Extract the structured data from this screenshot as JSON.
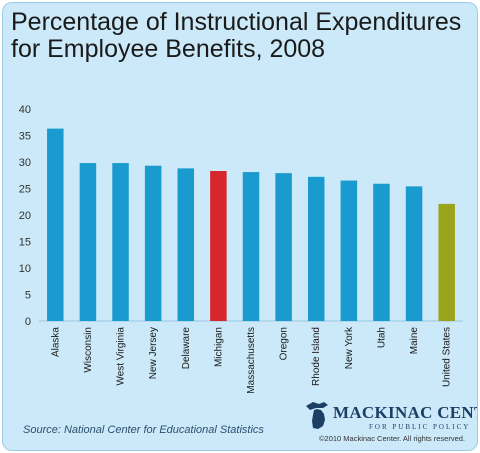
{
  "chart_data": {
    "type": "bar",
    "title": "Percentage of Instructional Expenditures for Employee Benefits, 2008",
    "categories": [
      "Alaska",
      "Wisconsin",
      "West Virginia",
      "New Jersey",
      "Delaware",
      "Michigan",
      "Massachusetts",
      "Oregon",
      "Rhode Island",
      "New York",
      "Utah",
      "Maine",
      "United States"
    ],
    "values": [
      36.3,
      29.8,
      29.8,
      29.3,
      28.8,
      28.3,
      28.1,
      27.9,
      27.2,
      26.5,
      25.9,
      25.4,
      22.1
    ],
    "bar_colors": [
      "#1a9bd0",
      "#1a9bd0",
      "#1a9bd0",
      "#1a9bd0",
      "#1a9bd0",
      "#d7262e",
      "#1a9bd0",
      "#1a9bd0",
      "#1a9bd0",
      "#1a9bd0",
      "#1a9bd0",
      "#1a9bd0",
      "#9aa51d"
    ],
    "ylim": [
      0,
      40
    ],
    "yticks": [
      0,
      5,
      10,
      15,
      20,
      25,
      30,
      35,
      40
    ],
    "xlabel": "",
    "ylabel": "",
    "grid": false,
    "legend": "none"
  },
  "source": "Source: National Center for Educational Statistics",
  "logo": {
    "name": "MACKINAC CENTER",
    "subtitle": "FOR PUBLIC POLICY",
    "copyright": "©2010 Mackinac Center. All rights reserved."
  },
  "colors": {
    "background": "#cbe9f8",
    "bar_default": "#1a9bd0",
    "bar_highlight": "#d7262e",
    "bar_national": "#9aa51d",
    "logo": "#1c3f66"
  }
}
